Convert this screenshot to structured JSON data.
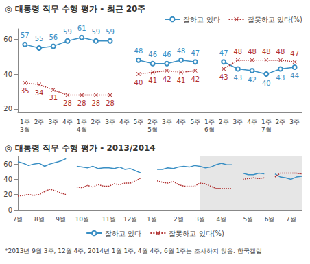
{
  "chart_data": [
    {
      "type": "line",
      "title": "◎ 대통령 직무 수행 평가 - 최근 20주",
      "categories": [
        "1주\n3월",
        "2주",
        "3주",
        "4주",
        "1주\n4월",
        "2주",
        "3주",
        "4주",
        "5주",
        "2주\n5월",
        "3주",
        "4주",
        "5주",
        "1주\n6월",
        "2주",
        "3주",
        "4주",
        "1주\n7월",
        "2주",
        "3주"
      ],
      "series": [
        {
          "name": "잘하고 있다",
          "color": "#3a8fc4",
          "marker": "circle",
          "line_style": "solid",
          "values": [
            57,
            55,
            56,
            59,
            61,
            59,
            59,
            null,
            48,
            46,
            46,
            48,
            47,
            null,
            47,
            43,
            42,
            40,
            43,
            44
          ]
        },
        {
          "name": "잘못하고 있다(%)",
          "color": "#b03030",
          "marker": "x",
          "line_style": "dotted",
          "values": [
            35,
            34,
            31,
            28,
            28,
            28,
            28,
            null,
            40,
            41,
            42,
            41,
            42,
            null,
            43,
            48,
            48,
            48,
            48,
            47
          ]
        }
      ],
      "ylim": [
        18,
        66
      ],
      "yticks": [
        20,
        40,
        60
      ],
      "grid": false,
      "legend": "upper right",
      "data_labels": true
    },
    {
      "type": "line",
      "title": "◎ 대통령 직무 수행 평가 - 2013/2014",
      "categories": [
        "7월",
        null,
        null,
        null,
        "8월",
        null,
        null,
        null,
        "9월",
        null,
        null,
        null,
        "10월",
        null,
        null,
        null,
        null,
        "11월",
        null,
        null,
        null,
        "12월",
        null,
        null,
        null,
        "1월",
        null,
        null,
        null,
        null,
        "2월",
        null,
        null,
        null,
        "3월",
        null,
        null,
        null,
        "4월",
        null,
        null,
        null,
        null,
        "5월",
        null,
        null,
        null,
        "6월",
        null,
        null,
        null,
        "7월",
        null,
        null
      ],
      "series": [
        {
          "name": "잘하고 있다",
          "color": "#3a8fc4",
          "marker": "none",
          "line_style": "solid",
          "values": [
            63,
            61,
            58,
            60,
            61,
            57,
            60,
            62,
            64,
            67,
            null,
            57,
            56,
            55,
            57,
            54,
            55,
            55,
            54,
            56,
            53,
            54,
            51,
            48,
            null,
            null,
            53,
            53,
            55,
            54,
            56,
            57,
            56,
            58,
            57,
            55,
            56,
            59,
            61,
            59,
            59,
            null,
            48,
            46,
            46,
            48,
            47,
            null,
            47,
            43,
            42,
            40,
            43,
            44
          ]
        },
        {
          "name": "잘못하고 있다(%)",
          "color": "#b03030",
          "marker": "none",
          "line_style": "dotted",
          "values": [
            18,
            19,
            20,
            19,
            20,
            24,
            27,
            25,
            22,
            20,
            null,
            30,
            29,
            32,
            30,
            33,
            31,
            31,
            34,
            33,
            35,
            35,
            38,
            42,
            null,
            null,
            38,
            36,
            35,
            37,
            33,
            31,
            31,
            31,
            35,
            34,
            31,
            28,
            28,
            28,
            28,
            null,
            40,
            41,
            42,
            41,
            42,
            null,
            43,
            48,
            48,
            48,
            48,
            47
          ]
        }
      ],
      "ylim": [
        0,
        70
      ],
      "yticks": [
        0,
        20,
        40,
        60
      ],
      "grid": false,
      "legend": "bottom",
      "data_labels": false,
      "note": "*2013년 9월 3주, 12월 4주, 2014년 1월 1주, 4월 4주, 6월 1주는 조사하지 않음. 한국갤럽"
    }
  ]
}
